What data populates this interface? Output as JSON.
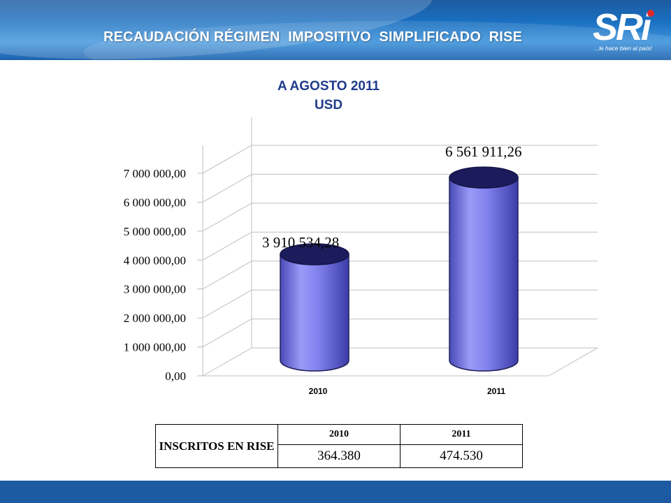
{
  "header": {
    "title": "RECAUDACIÓN RÉGIMEN  IMPOSITIVO  SIMPLIFICADO  RISE",
    "logo_text": "SRi",
    "logo_tagline": "...le hace bien al país!"
  },
  "chart_data": {
    "type": "bar",
    "style": "3d-cylinder",
    "title": "A AGOSTO 2011",
    "subtitle": "USD",
    "categories": [
      "2010",
      "2011"
    ],
    "values": [
      3910534.28,
      6561911.26
    ],
    "data_labels": [
      "3 910 534,28",
      "6 561 911,26"
    ],
    "ylim": [
      0,
      7000000
    ],
    "y_ticks": [
      {
        "value": 0,
        "label": "0,00"
      },
      {
        "value": 1000000,
        "label": "1 000 000,00"
      },
      {
        "value": 2000000,
        "label": "2 000 000,00"
      },
      {
        "value": 3000000,
        "label": "3 000 000,00"
      },
      {
        "value": 4000000,
        "label": "4 000 000,00"
      },
      {
        "value": 5000000,
        "label": "5 000 000,00"
      },
      {
        "value": 6000000,
        "label": "6 000 000,00"
      },
      {
        "value": 7000000,
        "label": "7 000 000,00"
      }
    ],
    "grid": true,
    "bar_color": "#8080ee"
  },
  "table": {
    "row_header": "INSCRITOS EN  RISE",
    "columns": [
      "2010",
      "2011"
    ],
    "values": [
      "364.380",
      "474.530"
    ]
  },
  "colors": {
    "header_blue": "#1a6fc0",
    "footer_blue": "#1c5aa2",
    "subtitle_blue": "#1f3b8c",
    "logo_red": "#e02a2a"
  }
}
